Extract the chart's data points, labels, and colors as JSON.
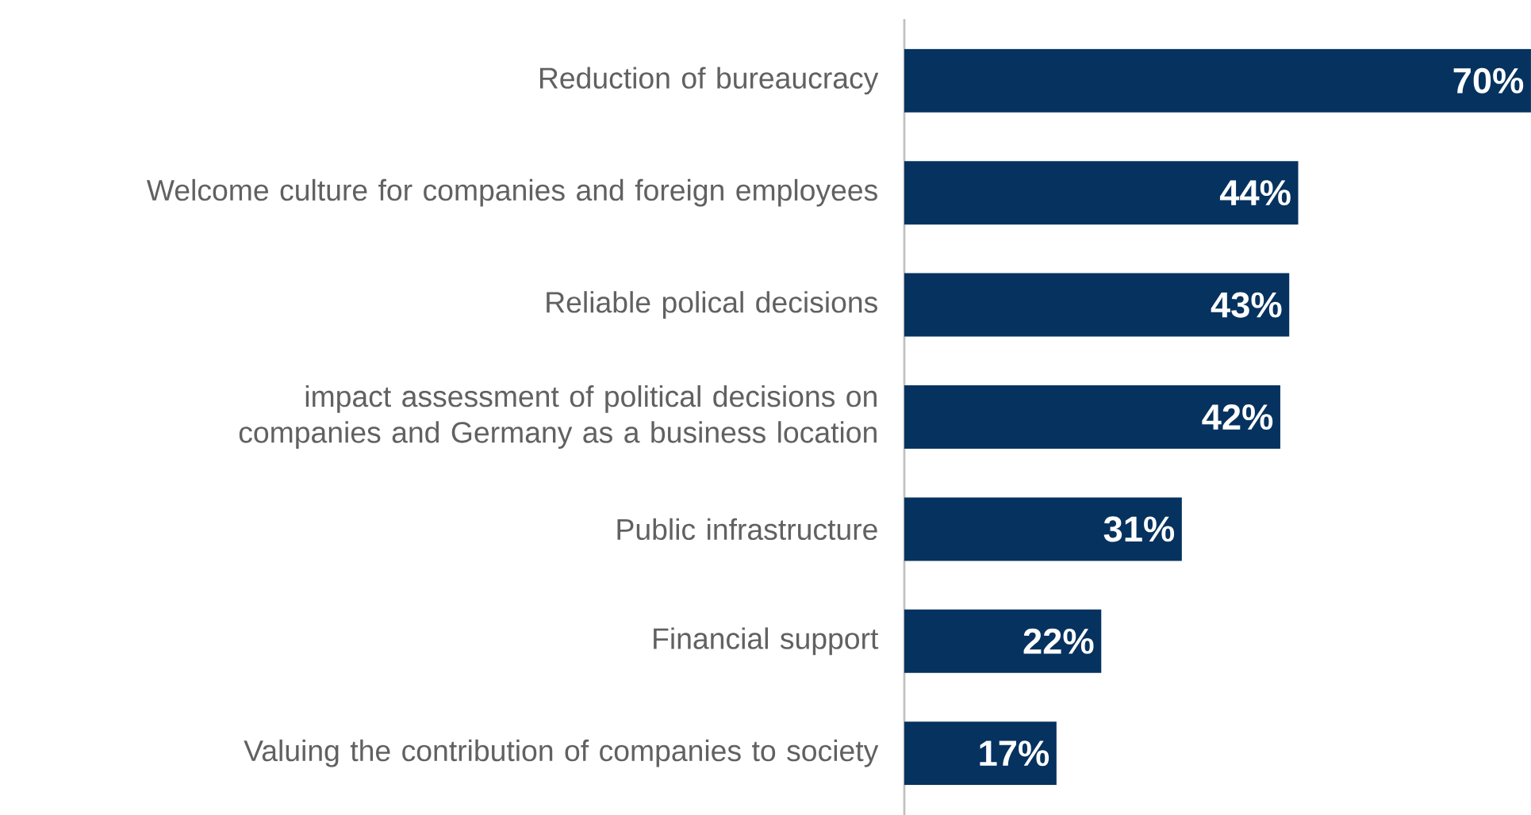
{
  "chart_data": {
    "type": "bar",
    "orientation": "horizontal",
    "color": "#06325f",
    "categories": [
      "Reduction of bureaucracy",
      "Welcome culture for companies and foreign employees",
      "Reliable polical decisions",
      "impact assessment of political decisions on companies and Germany as a business location",
      "Public infrastructure",
      "Financial support",
      "Valuing the contribution of companies to society"
    ],
    "values": [
      70,
      44,
      43,
      42,
      31,
      22,
      17
    ],
    "value_labels": [
      "70%",
      "44%",
      "43%",
      "42%",
      "31%",
      "22%",
      "17%"
    ]
  }
}
